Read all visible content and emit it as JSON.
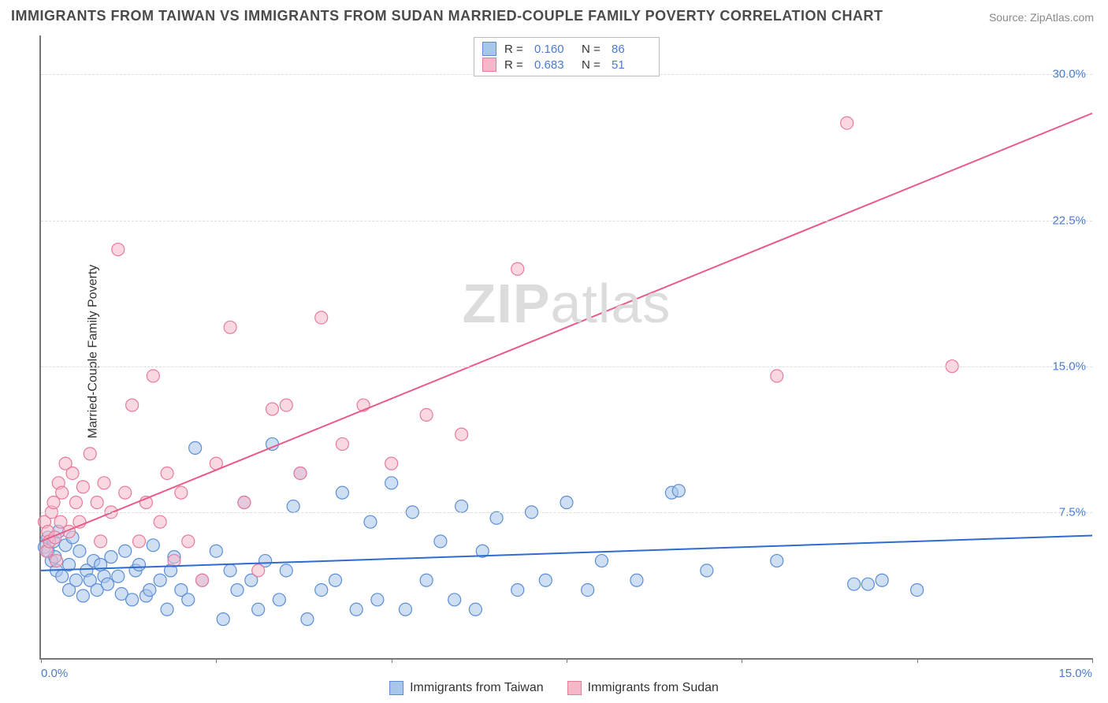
{
  "title": "IMMIGRANTS FROM TAIWAN VS IMMIGRANTS FROM SUDAN MARRIED-COUPLE FAMILY POVERTY CORRELATION CHART",
  "source_label": "Source:",
  "source_link": "ZipAtlas.com",
  "ylabel": "Married-Couple Family Poverty",
  "watermark_bold": "ZIP",
  "watermark_rest": "atlas",
  "chart": {
    "type": "scatter-with-regression",
    "background_color": "#ffffff",
    "grid_color": "#dddddd",
    "axis_color": "#777777",
    "tick_color": "#4a7bd0",
    "xlim": [
      0,
      15
    ],
    "ylim": [
      0,
      32
    ],
    "yticks": [
      7.5,
      15.0,
      22.5,
      30.0
    ],
    "ytick_labels": [
      "7.5%",
      "15.0%",
      "22.5%",
      "30.0%"
    ],
    "xticks": [
      0,
      2.5,
      5,
      7.5,
      10,
      12.5,
      15
    ],
    "xtick_labels_visible": {
      "0": "0.0%",
      "15": "15.0%"
    },
    "marker_radius": 8,
    "marker_opacity": 0.55,
    "line_width": 2,
    "series": [
      {
        "name": "Immigrants from Taiwan",
        "color_fill": "#a8c5ea",
        "color_stroke": "#5b8ed6",
        "line_color": "#2e6bd1",
        "r": "0.160",
        "n": "86",
        "regression": {
          "x1": 0,
          "y1": 4.5,
          "x2": 15,
          "y2": 6.3
        },
        "points": [
          [
            0.05,
            5.7
          ],
          [
            0.1,
            5.5
          ],
          [
            0.1,
            6.2
          ],
          [
            0.15,
            5.0
          ],
          [
            0.18,
            6.0
          ],
          [
            0.2,
            5.2
          ],
          [
            0.22,
            4.5
          ],
          [
            0.25,
            6.5
          ],
          [
            0.3,
            4.2
          ],
          [
            0.35,
            5.8
          ],
          [
            0.4,
            3.5
          ],
          [
            0.4,
            4.8
          ],
          [
            0.45,
            6.2
          ],
          [
            0.5,
            4.0
          ],
          [
            0.55,
            5.5
          ],
          [
            0.6,
            3.2
          ],
          [
            0.65,
            4.5
          ],
          [
            0.7,
            4.0
          ],
          [
            0.75,
            5.0
          ],
          [
            0.8,
            3.5
          ],
          [
            0.85,
            4.8
          ],
          [
            0.9,
            4.2
          ],
          [
            0.95,
            3.8
          ],
          [
            1.0,
            5.2
          ],
          [
            1.1,
            4.2
          ],
          [
            1.15,
            3.3
          ],
          [
            1.2,
            5.5
          ],
          [
            1.3,
            3.0
          ],
          [
            1.35,
            4.5
          ],
          [
            1.4,
            4.8
          ],
          [
            1.5,
            3.2
          ],
          [
            1.55,
            3.5
          ],
          [
            1.6,
            5.8
          ],
          [
            1.7,
            4.0
          ],
          [
            1.8,
            2.5
          ],
          [
            1.85,
            4.5
          ],
          [
            1.9,
            5.2
          ],
          [
            2.0,
            3.5
          ],
          [
            2.1,
            3.0
          ],
          [
            2.2,
            10.8
          ],
          [
            2.3,
            4.0
          ],
          [
            2.5,
            5.5
          ],
          [
            2.6,
            2.0
          ],
          [
            2.7,
            4.5
          ],
          [
            2.8,
            3.5
          ],
          [
            2.9,
            8.0
          ],
          [
            3.0,
            4.0
          ],
          [
            3.1,
            2.5
          ],
          [
            3.2,
            5.0
          ],
          [
            3.3,
            11.0
          ],
          [
            3.4,
            3.0
          ],
          [
            3.5,
            4.5
          ],
          [
            3.6,
            7.8
          ],
          [
            3.7,
            9.5
          ],
          [
            3.8,
            2.0
          ],
          [
            4.0,
            3.5
          ],
          [
            4.2,
            4.0
          ],
          [
            4.3,
            8.5
          ],
          [
            4.5,
            2.5
          ],
          [
            4.7,
            7.0
          ],
          [
            4.8,
            3.0
          ],
          [
            5.0,
            9.0
          ],
          [
            5.2,
            2.5
          ],
          [
            5.3,
            7.5
          ],
          [
            5.5,
            4.0
          ],
          [
            5.7,
            6.0
          ],
          [
            5.9,
            3.0
          ],
          [
            6.0,
            7.8
          ],
          [
            6.2,
            2.5
          ],
          [
            6.3,
            5.5
          ],
          [
            6.5,
            7.2
          ],
          [
            6.8,
            3.5
          ],
          [
            7.0,
            7.5
          ],
          [
            7.2,
            4.0
          ],
          [
            7.5,
            8.0
          ],
          [
            7.8,
            3.5
          ],
          [
            8.0,
            5.0
          ],
          [
            8.5,
            4.0
          ],
          [
            9.0,
            8.5
          ],
          [
            9.1,
            8.6
          ],
          [
            9.5,
            4.5
          ],
          [
            10.5,
            5.0
          ],
          [
            11.6,
            3.8
          ],
          [
            11.8,
            3.8
          ],
          [
            12.0,
            4.0
          ],
          [
            12.5,
            3.5
          ]
        ]
      },
      {
        "name": "Immigrants from Sudan",
        "color_fill": "#f5b8c8",
        "color_stroke": "#e87b9a",
        "line_color": "#e85a88",
        "r": "0.683",
        "n": "51",
        "regression": {
          "x1": 0,
          "y1": 6.0,
          "x2": 15,
          "y2": 28.0
        },
        "points": [
          [
            0.05,
            7.0
          ],
          [
            0.08,
            5.5
          ],
          [
            0.1,
            6.5
          ],
          [
            0.12,
            6.0
          ],
          [
            0.15,
            7.5
          ],
          [
            0.18,
            8.0
          ],
          [
            0.2,
            6.2
          ],
          [
            0.22,
            5.0
          ],
          [
            0.25,
            9.0
          ],
          [
            0.28,
            7.0
          ],
          [
            0.3,
            8.5
          ],
          [
            0.35,
            10.0
          ],
          [
            0.4,
            6.5
          ],
          [
            0.45,
            9.5
          ],
          [
            0.5,
            8.0
          ],
          [
            0.55,
            7.0
          ],
          [
            0.6,
            8.8
          ],
          [
            0.7,
            10.5
          ],
          [
            0.8,
            8.0
          ],
          [
            0.85,
            6.0
          ],
          [
            0.9,
            9.0
          ],
          [
            1.0,
            7.5
          ],
          [
            1.1,
            21.0
          ],
          [
            1.2,
            8.5
          ],
          [
            1.3,
            13.0
          ],
          [
            1.4,
            6.0
          ],
          [
            1.5,
            8.0
          ],
          [
            1.6,
            14.5
          ],
          [
            1.7,
            7.0
          ],
          [
            1.8,
            9.5
          ],
          [
            1.9,
            5.0
          ],
          [
            2.0,
            8.5
          ],
          [
            2.1,
            6.0
          ],
          [
            2.3,
            4.0
          ],
          [
            2.5,
            10.0
          ],
          [
            2.7,
            17.0
          ],
          [
            2.9,
            8.0
          ],
          [
            3.1,
            4.5
          ],
          [
            3.3,
            12.8
          ],
          [
            3.5,
            13.0
          ],
          [
            3.7,
            9.5
          ],
          [
            4.0,
            17.5
          ],
          [
            4.3,
            11.0
          ],
          [
            4.6,
            13.0
          ],
          [
            5.0,
            10.0
          ],
          [
            5.5,
            12.5
          ],
          [
            6.0,
            11.5
          ],
          [
            6.8,
            20.0
          ],
          [
            10.5,
            14.5
          ],
          [
            11.5,
            27.5
          ],
          [
            13.0,
            15.0
          ]
        ]
      }
    ]
  },
  "legend_top": {
    "r_label": "R =",
    "n_label": "N ="
  },
  "legend_bottom": [
    {
      "label": "Immigrants from Taiwan",
      "fill": "#a8c5ea",
      "stroke": "#5b8ed6"
    },
    {
      "label": "Immigrants from Sudan",
      "fill": "#f5b8c8",
      "stroke": "#e87b9a"
    }
  ]
}
